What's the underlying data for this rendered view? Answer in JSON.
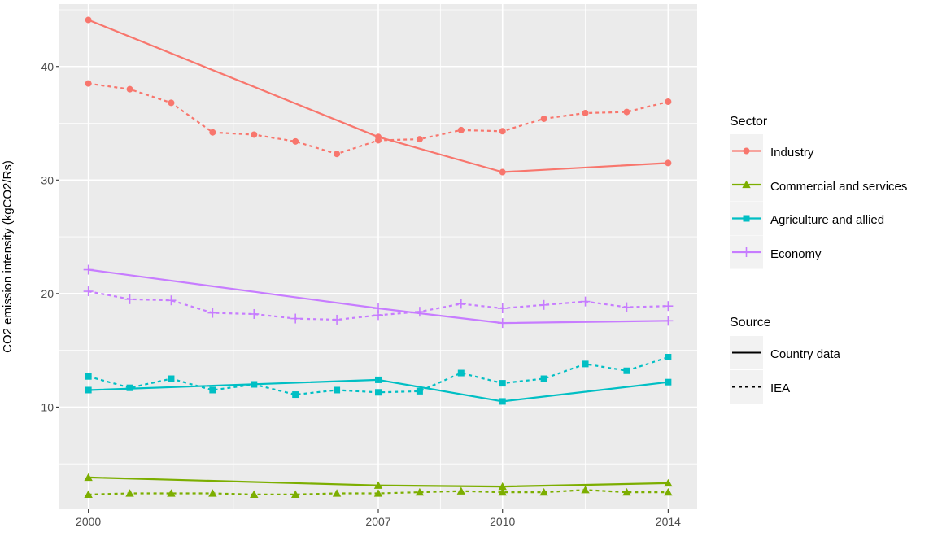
{
  "chart_data": {
    "type": "line",
    "title": "",
    "xlabel": "",
    "ylabel": "CO2 emission intensity (kgCO2/Rs)",
    "x_ticks": [
      2000,
      2007,
      2010,
      2014
    ],
    "y_ticks": [
      10,
      20,
      30,
      40
    ],
    "xlim": [
      1999.3,
      2014.7
    ],
    "ylim": [
      1.0,
      45.5
    ],
    "grid": true,
    "legend_position": "right",
    "sectors": {
      "title": "Sector",
      "items": [
        {
          "name": "Industry",
          "color": "#F8766D",
          "marker": "circle"
        },
        {
          "name": "Commercial and services",
          "color": "#7CAE00",
          "marker": "triangle"
        },
        {
          "name": "Agriculture and allied",
          "color": "#00BFC4",
          "marker": "square"
        },
        {
          "name": "Economy",
          "color": "#C77CFF",
          "marker": "plus"
        }
      ]
    },
    "sources": {
      "title": "Source",
      "items": [
        {
          "name": "Country data",
          "linestyle": "solid"
        },
        {
          "name": "IEA",
          "linestyle": "dashed"
        }
      ]
    },
    "series": [
      {
        "sector": "Industry",
        "source": "Country data",
        "x": [
          2000,
          2007,
          2010,
          2014
        ],
        "y": [
          44.1,
          33.8,
          30.7,
          31.5
        ]
      },
      {
        "sector": "Industry",
        "source": "IEA",
        "x": [
          2000,
          2001,
          2002,
          2003,
          2004,
          2005,
          2006,
          2007,
          2008,
          2009,
          2010,
          2011,
          2012,
          2013,
          2014
        ],
        "y": [
          38.5,
          38.0,
          36.8,
          34.2,
          34.0,
          33.4,
          32.3,
          33.5,
          33.6,
          34.4,
          34.3,
          35.4,
          35.9,
          36.0,
          36.9
        ]
      },
      {
        "sector": "Commercial and services",
        "source": "Country data",
        "x": [
          2000,
          2007,
          2010,
          2014
        ],
        "y": [
          3.8,
          3.1,
          3.0,
          3.3
        ]
      },
      {
        "sector": "Commercial and services",
        "source": "IEA",
        "x": [
          2000,
          2001,
          2002,
          2003,
          2004,
          2005,
          2006,
          2007,
          2008,
          2009,
          2010,
          2011,
          2012,
          2013,
          2014
        ],
        "y": [
          2.3,
          2.4,
          2.4,
          2.4,
          2.3,
          2.3,
          2.4,
          2.4,
          2.5,
          2.6,
          2.5,
          2.5,
          2.7,
          2.5,
          2.5
        ]
      },
      {
        "sector": "Agriculture and allied",
        "source": "Country data",
        "x": [
          2000,
          2007,
          2010,
          2014
        ],
        "y": [
          11.5,
          12.4,
          10.5,
          12.2
        ]
      },
      {
        "sector": "Agriculture and allied",
        "source": "IEA",
        "x": [
          2000,
          2001,
          2002,
          2003,
          2004,
          2005,
          2006,
          2007,
          2008,
          2009,
          2010,
          2011,
          2012,
          2013,
          2014
        ],
        "y": [
          12.7,
          11.7,
          12.5,
          11.5,
          12.0,
          11.1,
          11.5,
          11.3,
          11.4,
          13.0,
          12.1,
          12.5,
          13.8,
          13.2,
          14.4
        ]
      },
      {
        "sector": "Economy",
        "source": "Country data",
        "x": [
          2000,
          2007,
          2010,
          2014
        ],
        "y": [
          22.1,
          18.7,
          17.4,
          17.6
        ]
      },
      {
        "sector": "Economy",
        "source": "IEA",
        "x": [
          2000,
          2001,
          2002,
          2003,
          2004,
          2005,
          2006,
          2007,
          2008,
          2009,
          2010,
          2011,
          2012,
          2013,
          2014
        ],
        "y": [
          20.2,
          19.5,
          19.4,
          18.3,
          18.2,
          17.8,
          17.7,
          18.1,
          18.4,
          19.1,
          18.7,
          19.0,
          19.3,
          18.8,
          18.9
        ]
      }
    ]
  }
}
